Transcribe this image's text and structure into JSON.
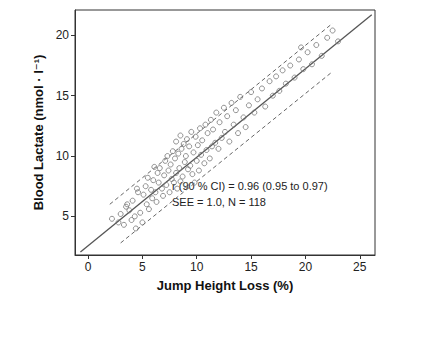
{
  "chart_data": {
    "type": "scatter",
    "x_label": "Jump Height Loss (%)",
    "y_label": "Blood Lactate (nmol · l⁻¹)",
    "xlim": [
      -1.2,
      26.4
    ],
    "ylim": [
      1.8,
      22.1
    ],
    "xticks": [
      0,
      5,
      10,
      15,
      20,
      25
    ],
    "yticks": [
      5,
      10,
      15,
      20
    ],
    "grid": false,
    "annotations": [
      "r (90 % CI) = 0.96 (0.95 to 0.97)",
      "SEE = 1.0, N = 118"
    ],
    "series": [
      {
        "type": "scatter",
        "marker": "open_circle",
        "color": "#777777",
        "x": [
          2.2,
          2.8,
          3.0,
          3.3,
          3.5,
          3.6,
          3.8,
          4.0,
          4.1,
          4.3,
          4.4,
          4.5,
          4.6,
          4.8,
          5.0,
          5.1,
          5.3,
          5.4,
          5.5,
          5.6,
          5.8,
          5.9,
          6.0,
          6.1,
          6.2,
          6.3,
          6.4,
          6.5,
          6.6,
          6.8,
          6.9,
          7.0,
          7.1,
          7.2,
          7.3,
          7.4,
          7.5,
          7.6,
          7.7,
          7.8,
          7.9,
          8.0,
          8.1,
          8.1,
          8.2,
          8.3,
          8.4,
          8.5,
          8.5,
          8.6,
          8.7,
          8.8,
          8.9,
          9.0,
          9.0,
          9.1,
          9.2,
          9.3,
          9.4,
          9.5,
          9.6,
          9.7,
          9.8,
          9.9,
          10.0,
          10.1,
          10.2,
          10.3,
          10.4,
          10.5,
          10.7,
          10.8,
          10.9,
          11.0,
          11.2,
          11.3,
          11.4,
          11.5,
          11.7,
          11.8,
          12.0,
          12.1,
          12.3,
          12.5,
          12.6,
          12.8,
          13.0,
          13.2,
          13.4,
          13.6,
          13.8,
          14.0,
          14.3,
          14.5,
          14.8,
          15.0,
          15.3,
          15.6,
          16.0,
          16.3,
          16.7,
          17.0,
          17.3,
          17.6,
          17.9,
          18.2,
          18.6,
          19.0,
          19.4,
          19.8,
          20.2,
          20.6,
          21.0,
          21.5,
          22.0,
          22.5,
          23.0,
          19.6
        ],
        "values": [
          4.8,
          4.5,
          5.2,
          4.3,
          5.8,
          6.0,
          5.5,
          4.7,
          6.3,
          5.0,
          4.0,
          7.3,
          7.0,
          5.3,
          4.5,
          6.8,
          7.5,
          6.0,
          8.2,
          5.6,
          7.2,
          6.5,
          8.0,
          9.1,
          7.0,
          6.2,
          8.6,
          7.8,
          9.0,
          7.3,
          6.7,
          8.4,
          9.6,
          7.6,
          10.0,
          8.8,
          7.0,
          9.3,
          8.1,
          10.4,
          7.8,
          9.8,
          11.2,
          8.6,
          7.3,
          10.2,
          9.0,
          11.7,
          7.9,
          10.6,
          8.3,
          11.0,
          9.5,
          10.0,
          7.6,
          11.4,
          8.9,
          10.8,
          9.2,
          12.0,
          8.5,
          10.3,
          7.8,
          11.6,
          9.6,
          10.9,
          8.8,
          12.3,
          10.1,
          11.3,
          9.4,
          12.6,
          10.5,
          11.9,
          9.8,
          13.0,
          10.8,
          12.2,
          11.1,
          13.6,
          10.6,
          12.8,
          11.5,
          14.0,
          12.0,
          13.3,
          11.2,
          14.4,
          12.6,
          13.8,
          11.9,
          14.9,
          13.2,
          12.4,
          14.2,
          15.3,
          13.6,
          14.7,
          15.6,
          14.1,
          16.2,
          15.0,
          16.6,
          15.4,
          17.1,
          16.0,
          17.5,
          16.5,
          18.0,
          17.2,
          18.6,
          17.6,
          19.2,
          18.3,
          19.8,
          20.4,
          19.5,
          19.0
        ]
      },
      {
        "type": "line",
        "line_style": "solid",
        "color": "#555555",
        "x": [
          -0.7,
          26.1
        ],
        "values": [
          2.05,
          21.7
        ]
      },
      {
        "type": "line",
        "line_style": "dashed",
        "color": "#666666",
        "x": [
          2.0,
          22.5
        ],
        "values": [
          6.0,
          21.0
        ]
      },
      {
        "type": "line",
        "line_style": "dashed",
        "color": "#666666",
        "x": [
          3.0,
          22.5
        ],
        "values": [
          2.8,
          17.0
        ]
      }
    ]
  }
}
